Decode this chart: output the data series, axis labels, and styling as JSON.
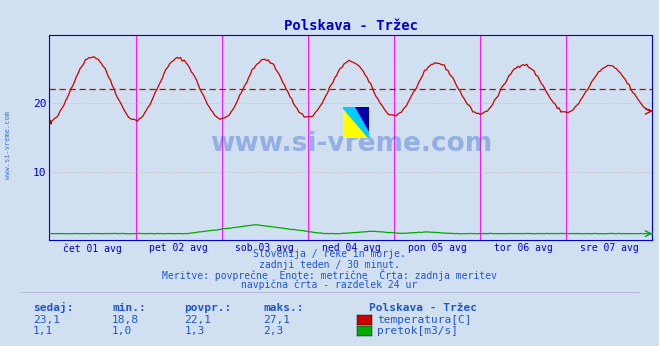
{
  "title": "Polskava - Tržec",
  "title_color": "#0000cc",
  "background_color": "#d0e0f0",
  "plot_bg_color": "#d0e0f0",
  "xlim": [
    0,
    336
  ],
  "ylim": [
    0,
    30
  ],
  "yticks": [
    10,
    20
  ],
  "temp_avg": 22.1,
  "temp_min": 18.8,
  "temp_max": 27.1,
  "temp_current": 23.1,
  "flow_avg": 1.3,
  "flow_min": 1.0,
  "flow_max": 2.3,
  "flow_current": 1.1,
  "temp_color": "#cc0000",
  "flow_color": "#00aa00",
  "avg_line_color": "#cc0000",
  "grid_color": "#cc9999",
  "vline_color": "#ff00ff",
  "watermark_text": "www.si-vreme.com",
  "watermark_color": "#2255cc",
  "watermark_alpha": 0.35,
  "xticklabels": [
    "čet 01 avg",
    "pet 02 avg",
    "sob 03 avg",
    "ned 04 avg",
    "pon 05 avg",
    "tor 06 avg",
    "sre 07 avg"
  ],
  "xtick_positions": [
    24,
    72,
    120,
    168,
    216,
    264,
    312
  ],
  "vline_positions": [
    0,
    48,
    96,
    144,
    192,
    240,
    288,
    336
  ],
  "footer_lines": [
    "Slovenija / reke in morje.",
    "zadnji teden / 30 minut.",
    "Meritve: povprečne  Enote: metrične  Črta: zadnja meritev",
    "navpična črta - razdelek 24 ur"
  ],
  "footer_color": "#2255cc",
  "legend_title": "Polskava - Tržec",
  "legend_items": [
    {
      "label": "temperatura[C]",
      "color": "#cc0000"
    },
    {
      "label": "pretok[m3/s]",
      "color": "#00aa00"
    }
  ],
  "stats_headers": [
    "sedaj:",
    "min.:",
    "povpr.:",
    "maks.:"
  ],
  "stats_rows": [
    [
      "23,1",
      "18,8",
      "22,1",
      "27,1"
    ],
    [
      "1,1",
      "1,0",
      "1,3",
      "2,3"
    ]
  ],
  "num_points": 337,
  "temp_period": 48,
  "temp_base": 22.1,
  "logo_colors": [
    "#ffff00",
    "#00ccff",
    "#0000aa"
  ]
}
